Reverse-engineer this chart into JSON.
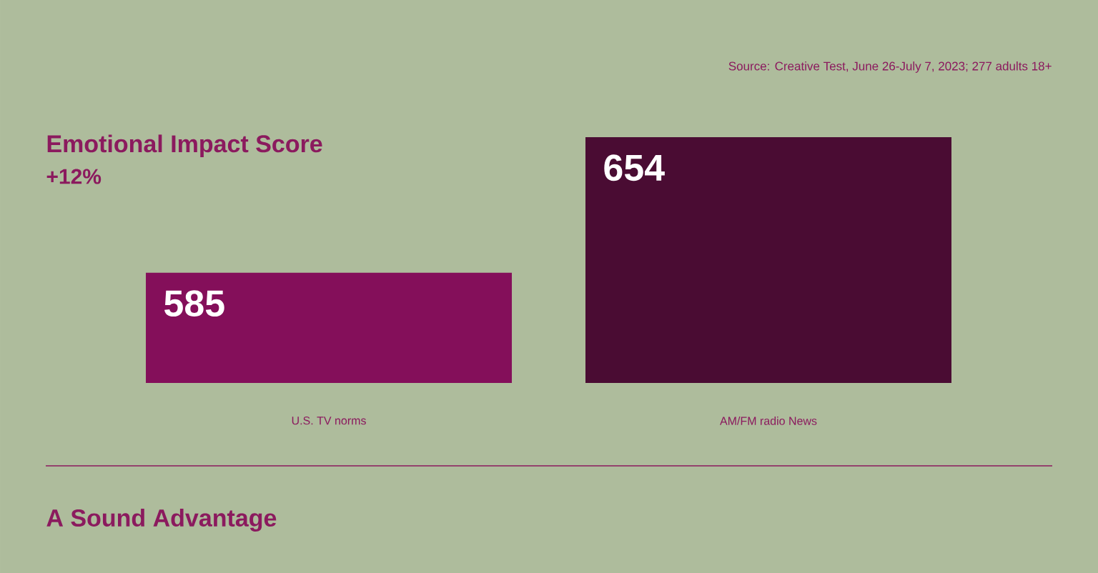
{
  "chart_data": {
    "type": "bar",
    "title": "Emotional Impact Score",
    "subtitle": "+12%",
    "categories": [
      "U.S. TV norms",
      "AM/FM radio News"
    ],
    "values": [
      585,
      654
    ],
    "colors": [
      "#840f5a",
      "#4a0c33"
    ],
    "ylim": [
      529,
      654
    ],
    "data_labels": true,
    "annotations": [
      "Source: Creative Test, June 26-July 7, 2023; 277 adults 18+",
      "A Sound Advantage"
    ]
  }
}
